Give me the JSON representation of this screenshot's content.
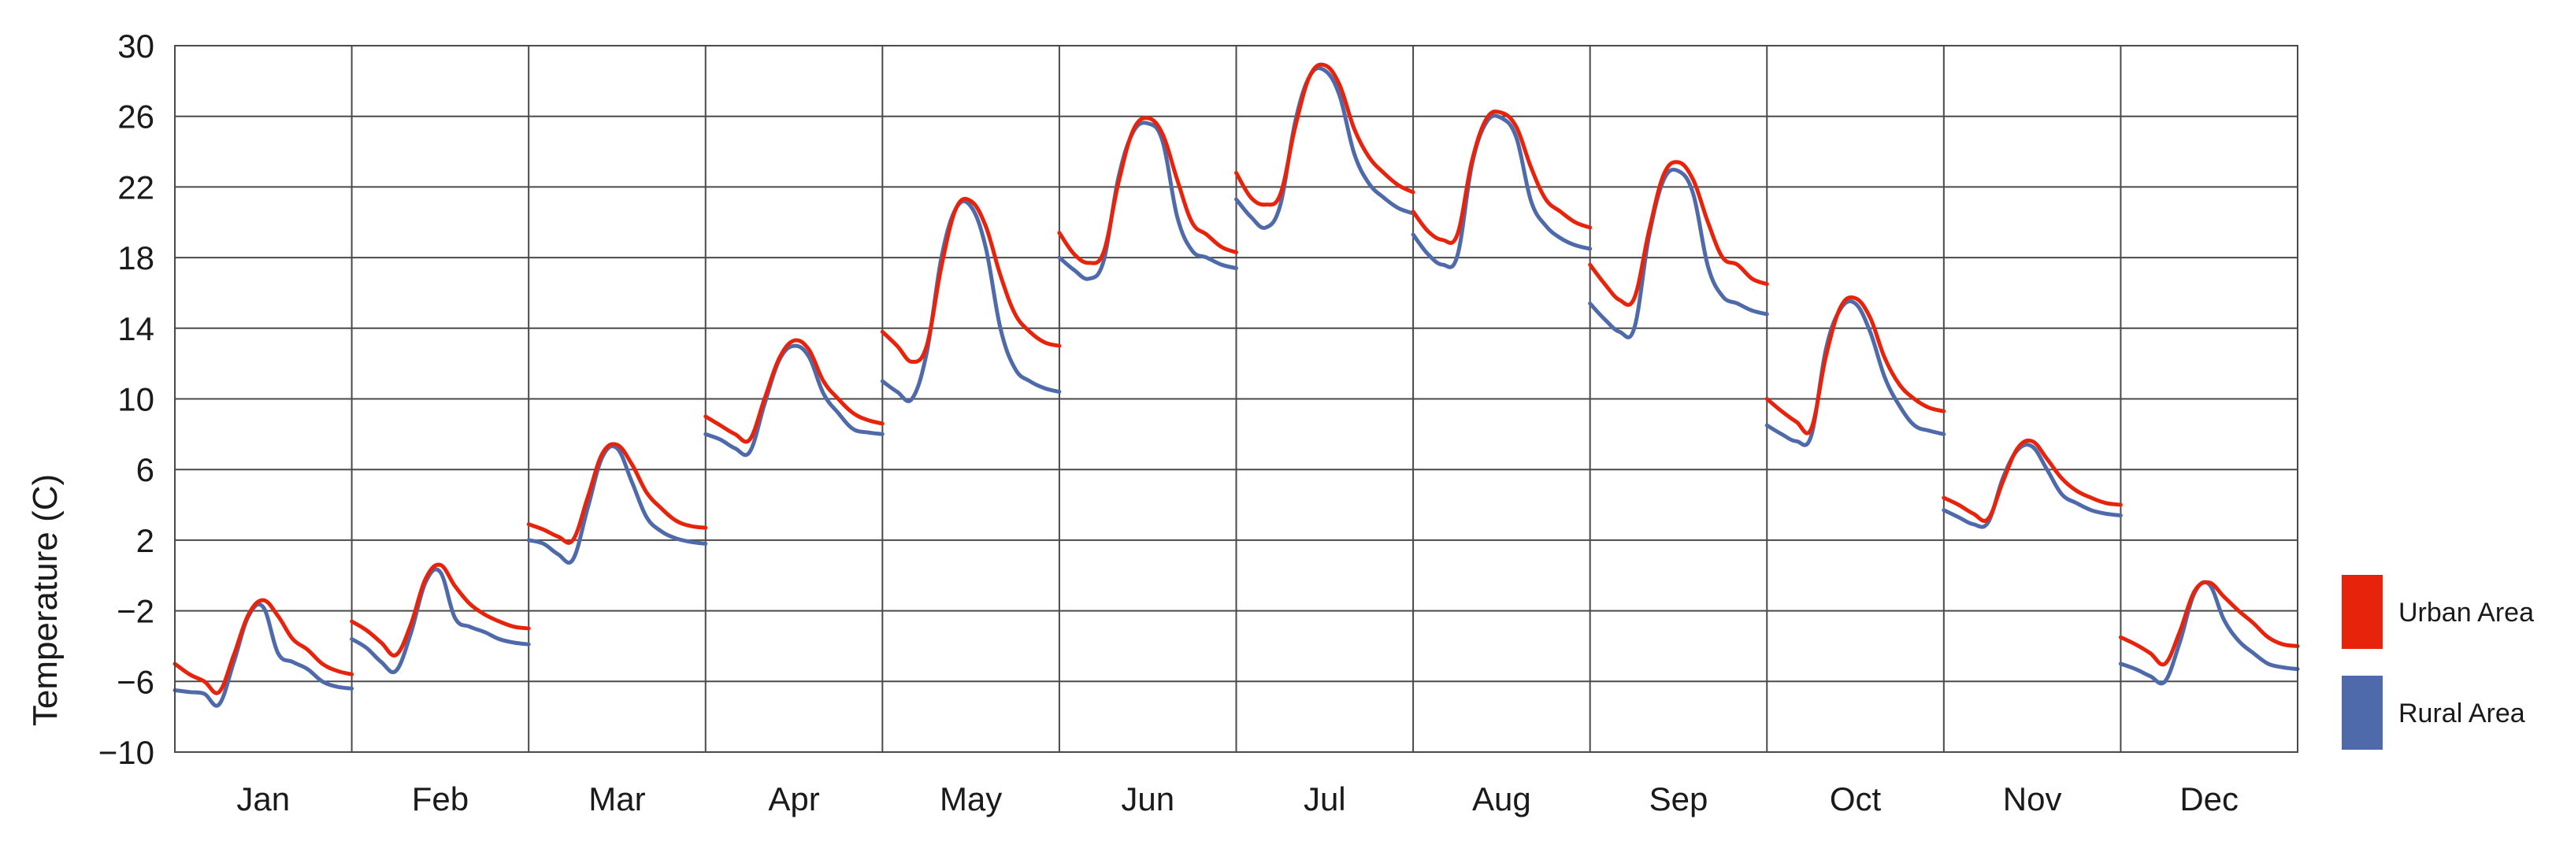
{
  "chart_data": {
    "type": "line",
    "title": "",
    "xlabel": "",
    "ylabel": "Temperature (C)",
    "ylim": [
      -10,
      30
    ],
    "yticks": [
      30,
      26,
      22,
      18,
      14,
      10,
      6,
      2,
      -2,
      -6,
      -10
    ],
    "ytick_labels": [
      "30",
      "26",
      "22",
      "18",
      "14",
      "10",
      "6",
      "2",
      "−2",
      "−6",
      "−10"
    ],
    "grid": true,
    "legend_position": "right-bottom",
    "hours": [
      0,
      2,
      4,
      6,
      8,
      10,
      12,
      14,
      16,
      18,
      20,
      22,
      24
    ],
    "categories": [
      "Jan",
      "Feb",
      "Mar",
      "Apr",
      "May",
      "Jun",
      "Jul",
      "Aug",
      "Sep",
      "Oct",
      "Nov",
      "Dec"
    ],
    "series": [
      {
        "name": "Urban Area",
        "color": "#e8230b",
        "values": [
          [
            -5.0,
            -5.6,
            -6.0,
            -6.6,
            -4.5,
            -2.2,
            -1.4,
            -2.3,
            -3.6,
            -4.2,
            -5.0,
            -5.4,
            -5.6
          ],
          [
            -2.6,
            -3.1,
            -3.8,
            -4.5,
            -2.8,
            -0.2,
            0.6,
            -0.6,
            -1.6,
            -2.2,
            -2.6,
            -2.9,
            -3.0
          ],
          [
            2.9,
            2.6,
            2.2,
            2.0,
            4.4,
            6.9,
            7.4,
            6.3,
            4.7,
            3.8,
            3.1,
            2.8,
            2.7
          ],
          [
            9.0,
            8.5,
            8.0,
            7.7,
            10.0,
            12.3,
            13.3,
            12.8,
            11.0,
            10.0,
            9.2,
            8.8,
            8.6
          ],
          [
            13.8,
            13.0,
            12.1,
            13.0,
            17.5,
            20.8,
            21.2,
            19.8,
            17.0,
            14.8,
            13.8,
            13.2,
            13.0
          ],
          [
            19.4,
            18.2,
            17.7,
            18.3,
            22.2,
            25.2,
            25.9,
            25.0,
            22.4,
            20.0,
            19.3,
            18.6,
            18.3
          ],
          [
            22.8,
            21.4,
            21.0,
            21.6,
            25.4,
            28.3,
            28.9,
            27.8,
            25.3,
            23.7,
            22.8,
            22.1,
            21.7
          ],
          [
            20.6,
            19.5,
            19.0,
            19.3,
            23.5,
            25.9,
            26.2,
            25.4,
            23.1,
            21.3,
            20.6,
            20.0,
            19.7
          ],
          [
            17.6,
            16.5,
            15.6,
            15.7,
            19.5,
            22.7,
            23.4,
            22.4,
            20.0,
            18.0,
            17.6,
            16.8,
            16.5
          ],
          [
            10.0,
            9.3,
            8.7,
            8.3,
            12.4,
            15.2,
            15.7,
            14.6,
            12.3,
            10.8,
            10.0,
            9.5,
            9.3
          ],
          [
            4.4,
            4.0,
            3.5,
            3.2,
            5.3,
            7.2,
            7.6,
            6.6,
            5.5,
            4.8,
            4.4,
            4.1,
            4.0
          ],
          [
            -3.5,
            -3.9,
            -4.4,
            -5.0,
            -3.2,
            -0.9,
            -0.4,
            -1.2,
            -2.0,
            -2.7,
            -3.5,
            -3.9,
            -4.0
          ]
        ]
      },
      {
        "name": "Rural Area",
        "color": "#4f6aaa",
        "values": [
          [
            -6.5,
            -6.6,
            -6.7,
            -7.3,
            -4.9,
            -2.3,
            -1.8,
            -4.4,
            -4.9,
            -5.3,
            -6.0,
            -6.3,
            -6.4
          ],
          [
            -3.6,
            -4.1,
            -4.9,
            -5.4,
            -3.3,
            -0.4,
            0.2,
            -2.4,
            -2.9,
            -3.2,
            -3.6,
            -3.8,
            -3.9
          ],
          [
            2.0,
            1.8,
            1.2,
            0.9,
            3.8,
            6.7,
            7.2,
            5.3,
            3.3,
            2.5,
            2.1,
            1.9,
            1.8
          ],
          [
            8.0,
            7.7,
            7.2,
            7.0,
            9.7,
            12.2,
            13.0,
            12.4,
            10.3,
            9.2,
            8.3,
            8.1,
            8.0
          ],
          [
            11.0,
            10.4,
            10.0,
            12.6,
            18.0,
            20.8,
            20.9,
            18.6,
            14.0,
            11.7,
            11.0,
            10.6,
            10.4
          ],
          [
            18.0,
            17.3,
            16.8,
            17.8,
            22.5,
            25.1,
            25.6,
            24.6,
            20.3,
            18.4,
            18.0,
            17.6,
            17.4
          ],
          [
            21.3,
            20.3,
            19.7,
            21.0,
            25.7,
            28.3,
            28.6,
            27.2,
            23.9,
            22.2,
            21.4,
            20.8,
            20.5
          ],
          [
            19.3,
            18.2,
            17.6,
            18.1,
            23.3,
            25.7,
            25.9,
            24.8,
            21.2,
            19.8,
            19.1,
            18.7,
            18.5
          ],
          [
            15.4,
            14.5,
            13.8,
            14.0,
            19.2,
            22.4,
            22.9,
            21.6,
            17.5,
            15.8,
            15.4,
            15.0,
            14.8
          ],
          [
            8.5,
            8.0,
            7.6,
            7.9,
            12.8,
            15.1,
            15.4,
            13.8,
            11.2,
            9.6,
            8.5,
            8.2,
            8.0
          ],
          [
            3.7,
            3.3,
            2.9,
            3.0,
            5.5,
            7.1,
            7.3,
            6.0,
            4.6,
            4.1,
            3.7,
            3.5,
            3.4
          ],
          [
            -5.0,
            -5.3,
            -5.7,
            -6.0,
            -3.8,
            -1.0,
            -0.5,
            -2.5,
            -3.7,
            -4.4,
            -5.0,
            -5.2,
            -5.3
          ]
        ]
      }
    ]
  }
}
